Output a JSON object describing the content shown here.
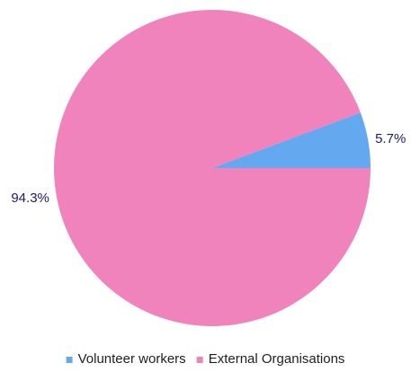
{
  "chart_data": {
    "type": "pie",
    "categories": [
      "Volunteer workers",
      "External Organisations"
    ],
    "values": [
      5.7,
      94.3
    ],
    "labels": [
      "5.7%",
      "94.3%"
    ],
    "colors": [
      "#64a8f0",
      "#f083bb"
    ],
    "title": "",
    "legend": {
      "position": "bottom",
      "entries": [
        "Volunteer workers",
        "External Organisations"
      ]
    }
  }
}
